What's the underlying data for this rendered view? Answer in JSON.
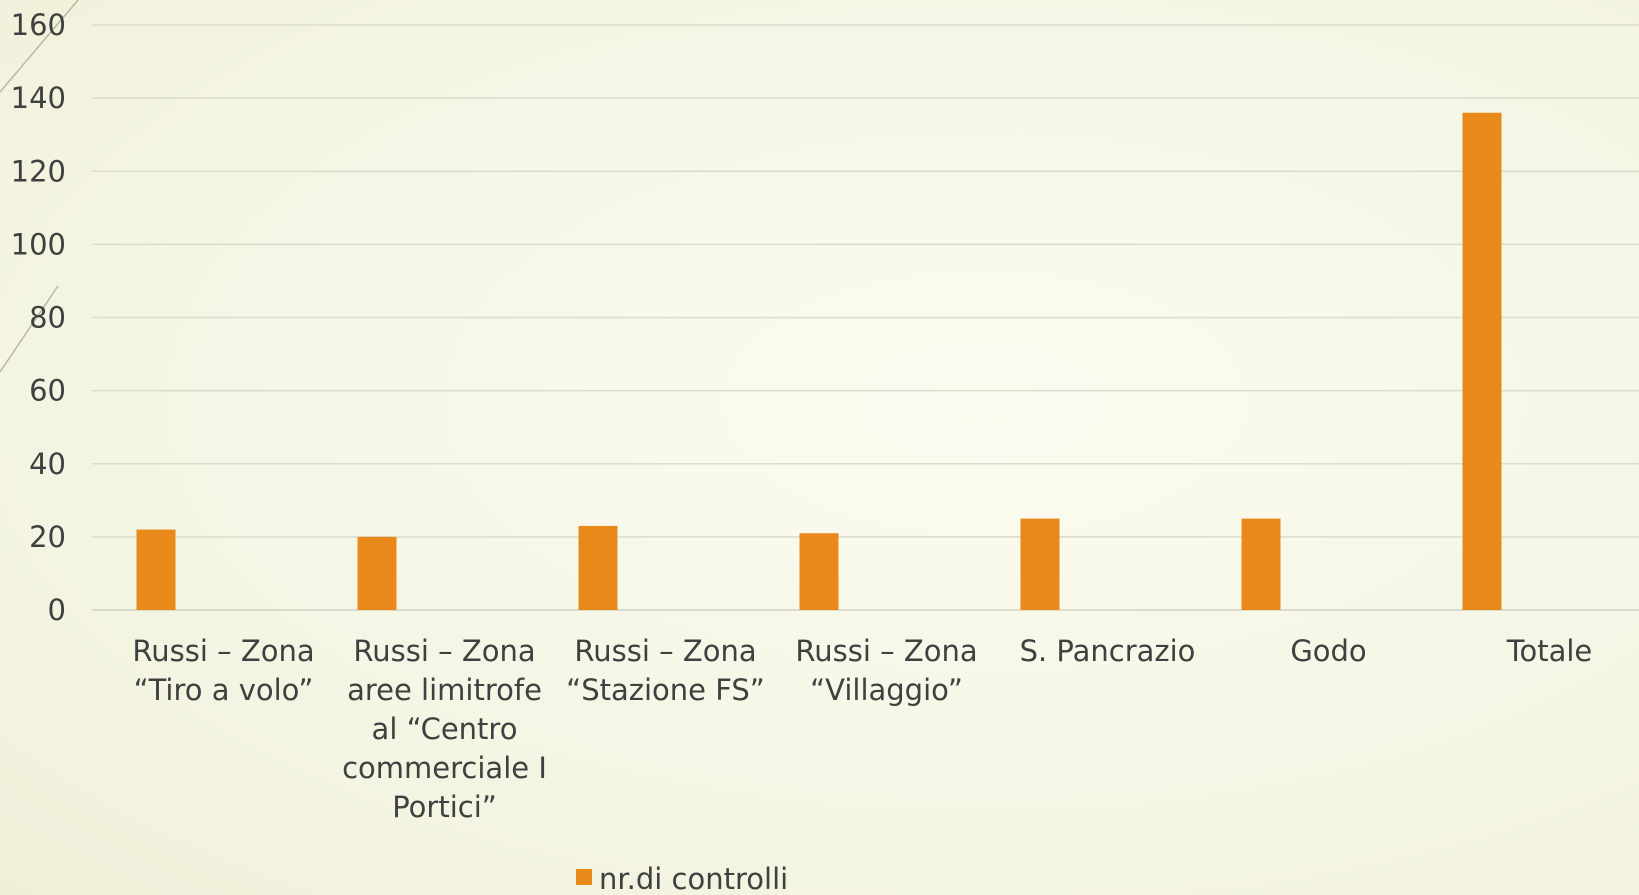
{
  "chart_data": {
    "type": "bar",
    "categories": [
      [
        "Russi – Zona",
        "“Tiro a volo”"
      ],
      [
        "Russi – Zona",
        "aree limitrofe",
        "al “Centro",
        "commerciale I",
        "Portici”"
      ],
      [
        "Russi – Zona",
        "“Stazione FS”"
      ],
      [
        "Russi – Zona",
        "“Villaggio”"
      ],
      [
        "S. Pancrazio"
      ],
      [
        "Godo"
      ],
      [
        "Totale"
      ]
    ],
    "series": [
      {
        "name": "nr.di controlli",
        "values": [
          22,
          20,
          23,
          21,
          25,
          25,
          136
        ],
        "color": "#e8891a"
      }
    ],
    "yticks": [
      0,
      20,
      40,
      60,
      80,
      100,
      120,
      140,
      160
    ],
    "ylim": [
      0,
      160
    ],
    "grid": true,
    "legend_position": "bottom"
  }
}
